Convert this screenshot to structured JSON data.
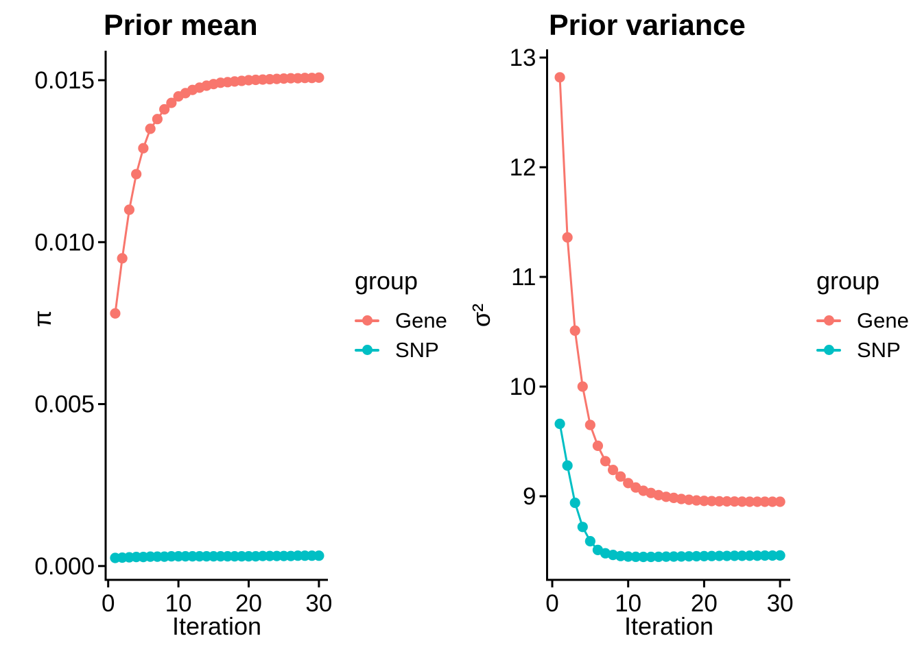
{
  "page": {
    "background": "#ffffff",
    "text_color": "#000000",
    "axis_color": "#000000"
  },
  "legend": {
    "title": "group",
    "items": [
      {
        "label": "Gene",
        "color": "#F8766D"
      },
      {
        "label": "SNP",
        "color": "#00BFC4"
      }
    ]
  },
  "chart_data": [
    {
      "type": "line",
      "title": "Prior mean",
      "xlabel": "Iteration",
      "ylabel": "π",
      "grid": false,
      "legend_position": "right",
      "xlim": [
        0,
        31
      ],
      "ylim": [
        0,
        0.0155
      ],
      "x_ticks": {
        "values": [
          0,
          10,
          20,
          30
        ],
        "labels": [
          "0",
          "10",
          "20",
          "30"
        ]
      },
      "y_ticks": {
        "values": [
          0.015,
          0.01,
          0.005,
          0.0
        ],
        "labels": [
          "0.015",
          "0.010",
          "0.005",
          "0.000"
        ]
      },
      "x": [
        1,
        2,
        3,
        4,
        5,
        6,
        7,
        8,
        9,
        10,
        11,
        12,
        13,
        14,
        15,
        16,
        17,
        18,
        19,
        20,
        21,
        22,
        23,
        24,
        25,
        26,
        27,
        28,
        29,
        30
      ],
      "series": [
        {
          "name": "Gene",
          "color": "#F8766D",
          "values": [
            0.0078,
            0.0095,
            0.011,
            0.0121,
            0.0129,
            0.0135,
            0.0138,
            0.0141,
            0.0143,
            0.0145,
            0.0146,
            0.0147,
            0.01477,
            0.01483,
            0.01488,
            0.01492,
            0.01494,
            0.01496,
            0.01498,
            0.015,
            0.01501,
            0.01502,
            0.01503,
            0.01504,
            0.01505,
            0.01506,
            0.01506,
            0.01507,
            0.01507,
            0.01508
          ]
        },
        {
          "name": "SNP",
          "color": "#00BFC4",
          "values": [
            0.00025,
            0.00026,
            0.00027,
            0.00028,
            0.00028,
            0.00029,
            0.00029,
            0.00029,
            0.0003,
            0.0003,
            0.0003,
            0.0003,
            0.0003,
            0.0003,
            0.0003,
            0.0003,
            0.0003,
            0.0003,
            0.0003,
            0.0003,
            0.0003,
            0.00031,
            0.00031,
            0.00031,
            0.00031,
            0.00031,
            0.00032,
            0.00032,
            0.00032,
            0.00032
          ]
        }
      ]
    },
    {
      "type": "line",
      "title": "Prior variance",
      "xlabel": "Iteration",
      "ylabel": "σ²",
      "grid": false,
      "legend_position": "right",
      "xlim": [
        0,
        31
      ],
      "ylim": [
        8.2,
        13
      ],
      "x_ticks": {
        "values": [
          0,
          10,
          20,
          30
        ],
        "labels": [
          "0",
          "10",
          "20",
          "30"
        ]
      },
      "y_ticks": {
        "values": [
          13,
          12,
          11,
          10,
          9
        ],
        "labels": [
          "13",
          "12",
          "11",
          "10",
          "9"
        ]
      },
      "x": [
        1,
        2,
        3,
        4,
        5,
        6,
        7,
        8,
        9,
        10,
        11,
        12,
        13,
        14,
        15,
        16,
        17,
        18,
        19,
        20,
        21,
        22,
        23,
        24,
        25,
        26,
        27,
        28,
        29,
        30
      ],
      "series": [
        {
          "name": "Gene",
          "color": "#F8766D",
          "values": [
            12.82,
            11.36,
            10.51,
            10.0,
            9.65,
            9.46,
            9.32,
            9.24,
            9.18,
            9.12,
            9.08,
            9.05,
            9.03,
            9.01,
            8.995,
            8.985,
            8.975,
            8.968,
            8.962,
            8.958,
            8.956,
            8.954,
            8.953,
            8.952,
            8.951,
            8.95,
            8.95,
            8.95,
            8.95,
            8.95
          ]
        },
        {
          "name": "SNP",
          "color": "#00BFC4",
          "values": [
            9.66,
            9.28,
            8.94,
            8.72,
            8.59,
            8.51,
            8.48,
            8.465,
            8.455,
            8.45,
            8.448,
            8.447,
            8.447,
            8.448,
            8.449,
            8.45,
            8.451,
            8.452,
            8.453,
            8.454,
            8.455,
            8.456,
            8.456,
            8.457,
            8.457,
            8.458,
            8.458,
            8.459,
            8.459,
            8.46
          ]
        }
      ]
    }
  ]
}
